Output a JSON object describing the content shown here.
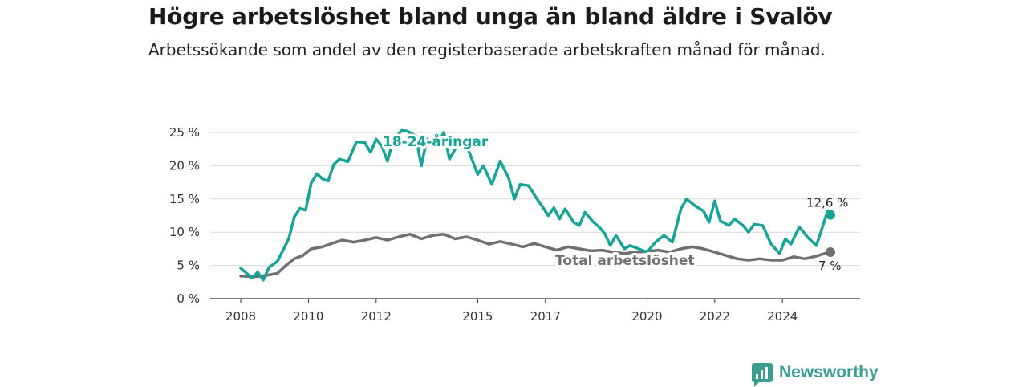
{
  "title": "Högre arbetslöshet bland unga än bland äldre i Svalöv",
  "subtitle": "Arbetssökande som andel av den registerbaserade arbetskraften månad för månad.",
  "brand": {
    "name": "Newsworthy",
    "icon": "newsworthy-chart-bubble-icon",
    "color": "#3b9e8e"
  },
  "chart_data": {
    "type": "line",
    "x_ticks": [
      "2008",
      "2010",
      "2012",
      "2015",
      "2017",
      "2020",
      "2022",
      "2024"
    ],
    "y_ticks": [
      "0 %",
      "5 %",
      "10 %",
      "15 %",
      "20 %",
      "25 %"
    ],
    "ylim": [
      0,
      25
    ],
    "xlim": [
      "2008-01",
      "2025-06"
    ],
    "grid": "horizontal",
    "series": [
      {
        "name": "18-24-åringar",
        "color": "#17a398",
        "end_label": "12,6 %",
        "points": [
          [
            "2008-01",
            4.6
          ],
          [
            "2008-05",
            3.1
          ],
          [
            "2008-07",
            4.0
          ],
          [
            "2008-09",
            2.8
          ],
          [
            "2008-11",
            4.7
          ],
          [
            "2009-02",
            5.6
          ],
          [
            "2009-04",
            7.3
          ],
          [
            "2009-06",
            9.0
          ],
          [
            "2009-08",
            12.3
          ],
          [
            "2009-10",
            13.6
          ],
          [
            "2009-12",
            13.3
          ],
          [
            "2010-02",
            17.4
          ],
          [
            "2010-04",
            18.8
          ],
          [
            "2010-06",
            18.0
          ],
          [
            "2010-08",
            17.7
          ],
          [
            "2010-10",
            20.2
          ],
          [
            "2010-12",
            21.0
          ],
          [
            "2011-03",
            20.6
          ],
          [
            "2011-06",
            23.6
          ],
          [
            "2011-09",
            23.5
          ],
          [
            "2011-11",
            22.0
          ],
          [
            "2012-01",
            24.0
          ],
          [
            "2012-03",
            23.0
          ],
          [
            "2012-05",
            20.7
          ],
          [
            "2012-07",
            23.8
          ],
          [
            "2012-10",
            25.3
          ],
          [
            "2012-12",
            25.2
          ],
          [
            "2013-03",
            24.5
          ],
          [
            "2013-05",
            20.0
          ],
          [
            "2013-07",
            24.0
          ],
          [
            "2013-10",
            23.0
          ],
          [
            "2014-01",
            25.0
          ],
          [
            "2014-03",
            21.0
          ],
          [
            "2014-05",
            22.5
          ],
          [
            "2014-07",
            24.0
          ],
          [
            "2014-10",
            22.0
          ],
          [
            "2015-01",
            18.7
          ],
          [
            "2015-03",
            20.0
          ],
          [
            "2015-06",
            17.2
          ],
          [
            "2015-09",
            20.7
          ],
          [
            "2015-12",
            18.1
          ],
          [
            "2016-02",
            15.0
          ],
          [
            "2016-04",
            17.2
          ],
          [
            "2016-07",
            17.0
          ],
          [
            "2016-10",
            15.0
          ],
          [
            "2016-12",
            13.8
          ],
          [
            "2017-02",
            12.5
          ],
          [
            "2017-04",
            13.7
          ],
          [
            "2017-06",
            12.0
          ],
          [
            "2017-08",
            13.5
          ],
          [
            "2017-11",
            11.5
          ],
          [
            "2018-01",
            11.0
          ],
          [
            "2018-03",
            13.0
          ],
          [
            "2018-06",
            11.5
          ],
          [
            "2018-08",
            10.8
          ],
          [
            "2018-10",
            9.8
          ],
          [
            "2018-12",
            8.0
          ],
          [
            "2019-02",
            9.5
          ],
          [
            "2019-05",
            7.5
          ],
          [
            "2019-07",
            8.0
          ],
          [
            "2020-01",
            7.0
          ],
          [
            "2020-04",
            8.5
          ],
          [
            "2020-07",
            9.5
          ],
          [
            "2020-10",
            8.5
          ],
          [
            "2021-01",
            13.5
          ],
          [
            "2021-03",
            15.0
          ],
          [
            "2021-06",
            14.0
          ],
          [
            "2021-09",
            13.2
          ],
          [
            "2021-11",
            11.5
          ],
          [
            "2022-01",
            14.7
          ],
          [
            "2022-03",
            11.7
          ],
          [
            "2022-06",
            11.0
          ],
          [
            "2022-08",
            12.0
          ],
          [
            "2022-11",
            11.0
          ],
          [
            "2023-01",
            10.0
          ],
          [
            "2023-03",
            11.2
          ],
          [
            "2023-06",
            11.0
          ],
          [
            "2023-09",
            8.2
          ],
          [
            "2023-12",
            6.8
          ],
          [
            "2024-02",
            9.0
          ],
          [
            "2024-04",
            8.2
          ],
          [
            "2024-07",
            10.8
          ],
          [
            "2024-10",
            9.2
          ],
          [
            "2025-01",
            8.0
          ],
          [
            "2025-03",
            10.5
          ],
          [
            "2025-05",
            13.2
          ],
          [
            "2025-06",
            12.6
          ]
        ]
      },
      {
        "name": "Total arbetslöshet",
        "color": "#707070",
        "end_label": "7 %",
        "points": [
          [
            "2008-01",
            3.4
          ],
          [
            "2008-06",
            3.3
          ],
          [
            "2008-10",
            3.5
          ],
          [
            "2009-02",
            3.8
          ],
          [
            "2009-05",
            5.0
          ],
          [
            "2009-08",
            6.0
          ],
          [
            "2009-11",
            6.5
          ],
          [
            "2010-02",
            7.5
          ],
          [
            "2010-06",
            7.8
          ],
          [
            "2010-10",
            8.4
          ],
          [
            "2011-01",
            8.8
          ],
          [
            "2011-05",
            8.5
          ],
          [
            "2011-09",
            8.8
          ],
          [
            "2012-01",
            9.2
          ],
          [
            "2012-05",
            8.8
          ],
          [
            "2012-09",
            9.3
          ],
          [
            "2013-01",
            9.7
          ],
          [
            "2013-05",
            9.0
          ],
          [
            "2013-09",
            9.5
          ],
          [
            "2014-01",
            9.7
          ],
          [
            "2014-05",
            9.0
          ],
          [
            "2014-09",
            9.3
          ],
          [
            "2015-01",
            8.8
          ],
          [
            "2015-05",
            8.2
          ],
          [
            "2015-09",
            8.6
          ],
          [
            "2016-01",
            8.2
          ],
          [
            "2016-05",
            7.8
          ],
          [
            "2016-09",
            8.3
          ],
          [
            "2017-01",
            7.8
          ],
          [
            "2017-05",
            7.3
          ],
          [
            "2017-09",
            7.8
          ],
          [
            "2018-01",
            7.5
          ],
          [
            "2018-05",
            7.2
          ],
          [
            "2018-09",
            7.3
          ],
          [
            "2019-01",
            7.0
          ],
          [
            "2019-05",
            6.8
          ],
          [
            "2019-09",
            7.0
          ],
          [
            "2020-01",
            7.1
          ],
          [
            "2020-05",
            7.3
          ],
          [
            "2020-09",
            7.0
          ],
          [
            "2021-01",
            7.5
          ],
          [
            "2021-05",
            7.8
          ],
          [
            "2021-09",
            7.5
          ],
          [
            "2022-01",
            7.0
          ],
          [
            "2022-05",
            6.5
          ],
          [
            "2022-09",
            6.0
          ],
          [
            "2023-01",
            5.8
          ],
          [
            "2023-05",
            6.0
          ],
          [
            "2023-09",
            5.8
          ],
          [
            "2024-01",
            5.8
          ],
          [
            "2024-05",
            6.3
          ],
          [
            "2024-09",
            6.0
          ],
          [
            "2025-01",
            6.4
          ],
          [
            "2025-04",
            6.8
          ],
          [
            "2025-06",
            7.0
          ]
        ]
      }
    ]
  }
}
